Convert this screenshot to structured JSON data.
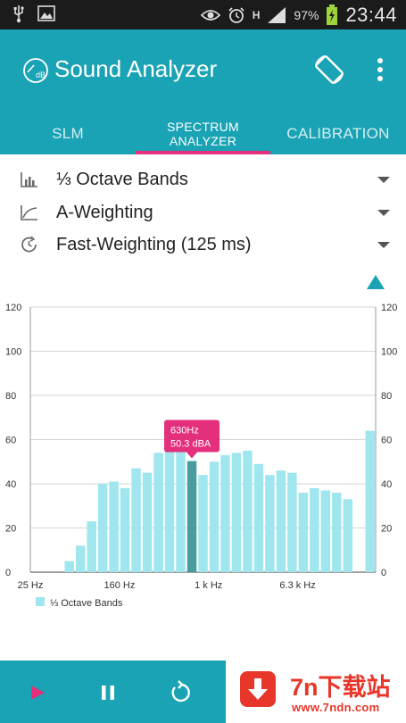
{
  "status_bar": {
    "battery_percent": "97%",
    "time": "23:44",
    "network_type": "H",
    "icons": [
      "usb-icon",
      "image-icon",
      "eye-icon",
      "alarm-icon",
      "network-h-icon",
      "signal-icon",
      "battery-charging-icon"
    ]
  },
  "app_bar": {
    "title": "Sound Analyzer",
    "logo_text": "dB",
    "icons": [
      "app-logo-icon",
      "screen-rotation-icon",
      "overflow-menu-icon"
    ],
    "color": "#19a3b4"
  },
  "tabs": [
    {
      "label": "SLM",
      "active": false
    },
    {
      "label": "SPECTRUM ANALYZER",
      "line1": "SPECTRUM",
      "line2": "ANALYZER",
      "active": true
    },
    {
      "label": "CALIBRATION",
      "active": false
    }
  ],
  "tab_indicator_color": "#e32f7c",
  "options": [
    {
      "label": "⅓ Octave Bands",
      "icon": "bar-chart-icon"
    },
    {
      "label": "A-Weighting",
      "icon": "weighting-curve-icon"
    },
    {
      "label": "Fast-Weighting (125 ms)",
      "icon": "time-weighting-icon"
    }
  ],
  "chart_data": {
    "type": "bar",
    "values": [
      0,
      0,
      0,
      5,
      12,
      23,
      40,
      41,
      38,
      47,
      45,
      54,
      56,
      57,
      50.3,
      44,
      50,
      53,
      54,
      55,
      49,
      44,
      46,
      45,
      36,
      38,
      37,
      36,
      33,
      0,
      64
    ],
    "x_tick_labels": [
      {
        "label": "25 Hz",
        "index": 0
      },
      {
        "label": "160 Hz",
        "index": 8
      },
      {
        "label": "1 k Hz",
        "index": 16
      },
      {
        "label": "6.3 k Hz",
        "index": 24
      }
    ],
    "ylim": [
      0,
      120
    ],
    "y_ticks": [
      0,
      20,
      40,
      60,
      80,
      100,
      120
    ],
    "y_tick_labels": [
      "0",
      "20",
      "40",
      "60",
      "80",
      "100",
      "120"
    ],
    "highlight_index": 14,
    "tooltip": {
      "line1": "630Hz",
      "line2": "50.3 dBA"
    },
    "legend": [
      {
        "name": "⅓ Octave Bands",
        "color": "#a0e6ee"
      }
    ],
    "legend_placement": "bottom-left",
    "grid": true,
    "bar_color": "#a0e6ee",
    "highlight_color": "#4a9c9f",
    "tooltip_color": "#e32f7c"
  },
  "controls": [
    {
      "name": "play-button",
      "icon": "play-icon"
    },
    {
      "name": "pause-button",
      "icon": "pause-icon"
    },
    {
      "name": "reset-button",
      "icon": "refresh-icon"
    }
  ],
  "watermark": {
    "title": "7n下载站",
    "url": "www.7ndn.com",
    "icon": "download-arrow-icon"
  }
}
